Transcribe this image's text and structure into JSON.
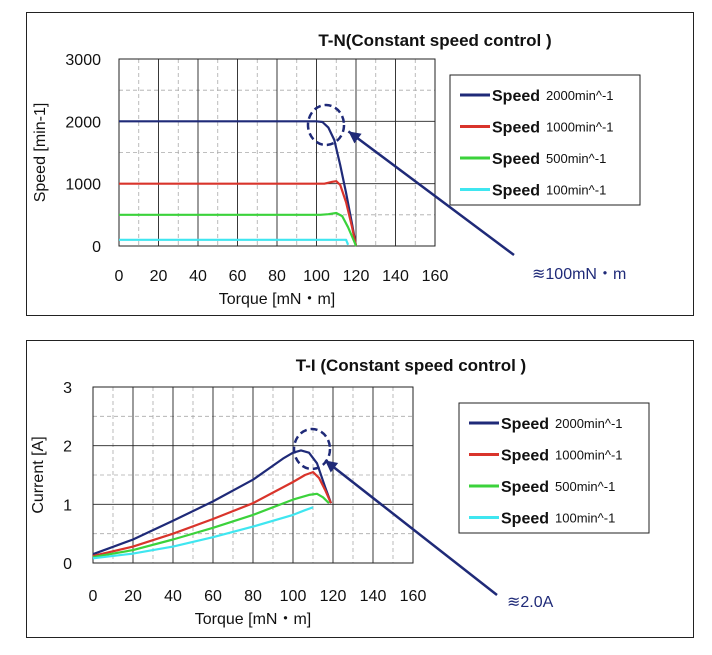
{
  "colors": {
    "speed_2000": "#1f2a78",
    "speed_1000": "#d9342b",
    "speed_500": "#3bd23b",
    "speed_100": "#3fe6f0",
    "annotation": "#1f2a78"
  },
  "chart_data": [
    {
      "type": "line",
      "title": "T-N(Constant speed control )",
      "xlabel": "Torque [mN・m]",
      "ylabel": "Speed [min-1]",
      "xlim": [
        0,
        160
      ],
      "ylim": [
        0,
        3000
      ],
      "xticks": [
        "0",
        "20",
        "40",
        "60",
        "80",
        "100",
        "120",
        "140",
        "160"
      ],
      "yticks": [
        "0",
        "1000",
        "2000",
        "3000"
      ],
      "grid": true,
      "legend_position": "right",
      "series": [
        {
          "name": "Speed",
          "name_suffix": "2000min^-1",
          "color_key": "speed_2000",
          "points": [
            [
              0,
              2000
            ],
            [
              96,
              2000
            ],
            [
              100,
              2000
            ],
            [
              103,
              1990
            ],
            [
              106,
              1900
            ],
            [
              109,
              1700
            ],
            [
              112,
              1300
            ],
            [
              115,
              850
            ],
            [
              118,
              350
            ],
            [
              120,
              0
            ]
          ]
        },
        {
          "name": "Speed",
          "name_suffix": "1000min^-1",
          "color_key": "speed_1000",
          "points": [
            [
              0,
              1000
            ],
            [
              104,
              1000
            ],
            [
              108,
              1030
            ],
            [
              110,
              1040
            ],
            [
              112,
              980
            ],
            [
              115,
              700
            ],
            [
              118,
              300
            ],
            [
              120,
              0
            ]
          ]
        },
        {
          "name": "Speed",
          "name_suffix": "500min^-1",
          "color_key": "speed_500",
          "points": [
            [
              0,
              500
            ],
            [
              102,
              500
            ],
            [
              106,
              510
            ],
            [
              110,
              530
            ],
            [
              113,
              480
            ],
            [
              116,
              300
            ],
            [
              119,
              80
            ],
            [
              120,
              0
            ]
          ]
        },
        {
          "name": "Speed",
          "name_suffix": "100min^-1",
          "color_key": "speed_100",
          "points": [
            [
              0,
              100
            ],
            [
              112,
              100
            ],
            [
              115,
              100
            ],
            [
              116,
              20
            ]
          ]
        }
      ],
      "annotation": {
        "text": "≋100mN・m",
        "target": [
          104,
          2000
        ]
      }
    },
    {
      "type": "line",
      "title": "T-I (Constant speed control )",
      "xlabel": "Torque [mN・m]",
      "ylabel": "Current [A]",
      "xlim": [
        0,
        160
      ],
      "ylim": [
        0,
        3
      ],
      "xticks": [
        "0",
        "20",
        "40",
        "60",
        "80",
        "100",
        "120",
        "140",
        "160"
      ],
      "yticks": [
        "0",
        "1",
        "2",
        "3"
      ],
      "grid": true,
      "legend_position": "right",
      "series": [
        {
          "name": "Speed",
          "name_suffix": "2000min^-1",
          "color_key": "speed_2000",
          "points": [
            [
              0,
              0.15
            ],
            [
              20,
              0.4
            ],
            [
              40,
              0.72
            ],
            [
              60,
              1.05
            ],
            [
              80,
              1.42
            ],
            [
              95,
              1.78
            ],
            [
              100,
              1.88
            ],
            [
              104,
              1.92
            ],
            [
              108,
              1.88
            ],
            [
              112,
              1.7
            ],
            [
              116,
              1.3
            ],
            [
              119,
              1.02
            ]
          ]
        },
        {
          "name": "Speed",
          "name_suffix": "1000min^-1",
          "color_key": "speed_1000",
          "points": [
            [
              0,
              0.12
            ],
            [
              20,
              0.28
            ],
            [
              40,
              0.5
            ],
            [
              60,
              0.75
            ],
            [
              80,
              1.02
            ],
            [
              100,
              1.38
            ],
            [
              106,
              1.5
            ],
            [
              110,
              1.55
            ],
            [
              113,
              1.45
            ],
            [
              116,
              1.25
            ],
            [
              119,
              1.02
            ]
          ]
        },
        {
          "name": "Speed",
          "name_suffix": "500min^-1",
          "color_key": "speed_500",
          "points": [
            [
              0,
              0.1
            ],
            [
              20,
              0.22
            ],
            [
              40,
              0.4
            ],
            [
              60,
              0.6
            ],
            [
              80,
              0.82
            ],
            [
              100,
              1.08
            ],
            [
              108,
              1.16
            ],
            [
              112,
              1.18
            ],
            [
              115,
              1.12
            ],
            [
              118,
              1.02
            ]
          ]
        },
        {
          "name": "Speed",
          "name_suffix": "100min^-1",
          "color_key": "speed_100",
          "points": [
            [
              0,
              0.08
            ],
            [
              20,
              0.16
            ],
            [
              40,
              0.28
            ],
            [
              60,
              0.44
            ],
            [
              80,
              0.62
            ],
            [
              100,
              0.82
            ],
            [
              106,
              0.9
            ],
            [
              110,
              0.95
            ]
          ]
        }
      ],
      "annotation": {
        "text": "≋2.0A",
        "target": [
          104,
          1.92
        ]
      }
    }
  ]
}
